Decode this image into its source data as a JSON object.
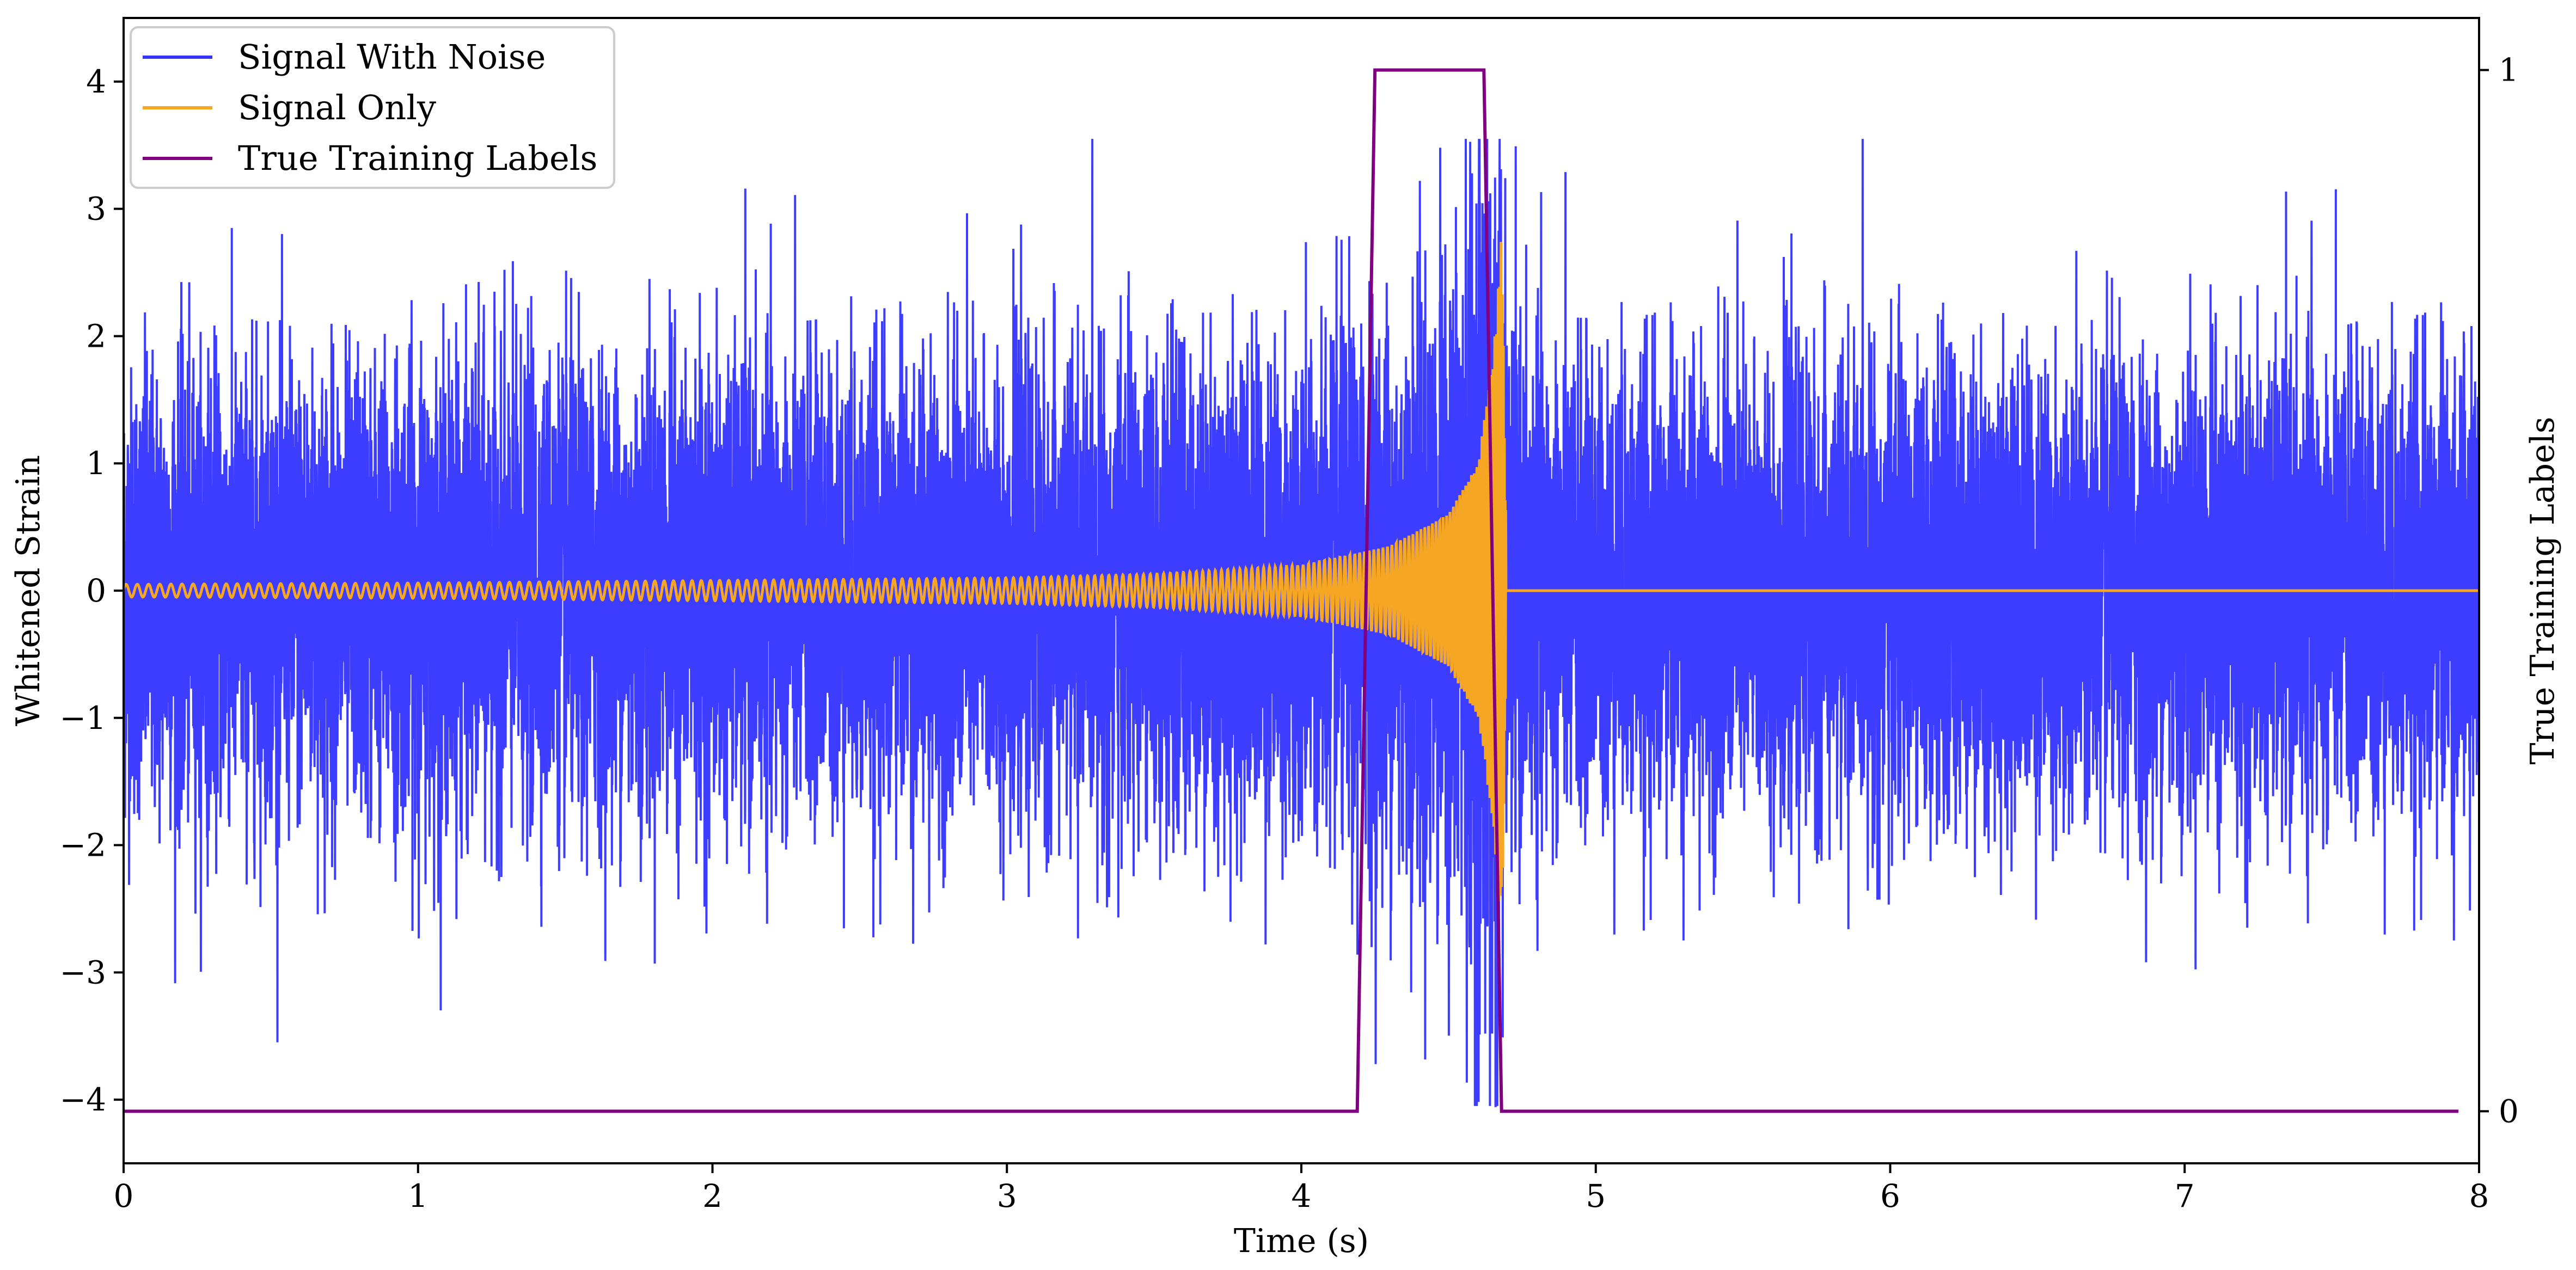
{
  "chart_data": {
    "type": "line",
    "xlabel": "Time (s)",
    "ylabel": "Whitened Strain",
    "y2label": "True Training Labels",
    "xlim": [
      0,
      8
    ],
    "ylim": [
      -4.5,
      4.5
    ],
    "y2lim": [
      -0.05,
      1.05
    ],
    "x_ticks": [
      "0",
      "1",
      "2",
      "3",
      "4",
      "5",
      "6",
      "7",
      "8"
    ],
    "y_ticks": [
      "4",
      "3",
      "2",
      "1",
      "0",
      "−1",
      "−2",
      "−3",
      "−4"
    ],
    "y2_ticks": [
      "1",
      "0"
    ],
    "grid": false,
    "legend_position": "top-left",
    "series": [
      {
        "name": "Signal With Noise",
        "color": "#3333ff",
        "axis": "left",
        "description_points": {
          "x": [
            0.0,
            1.0,
            2.0,
            3.0,
            4.0,
            4.5,
            4.66,
            4.7,
            5.0,
            6.0,
            7.0,
            8.0
          ],
          "amplitude_envelope": [
            1.6,
            1.6,
            1.6,
            1.6,
            1.7,
            2.2,
            3.5,
            1.8,
            1.6,
            1.6,
            1.6,
            1.6
          ]
        }
      },
      {
        "name": "Signal Only",
        "color": "#f5a623",
        "axis": "left",
        "chirp": {
          "x": [
            0.0,
            1.0,
            2.0,
            3.0,
            3.5,
            4.0,
            4.3,
            4.5,
            4.6,
            4.65,
            4.68,
            4.7,
            8.0
          ],
          "amplitude": [
            0.05,
            0.06,
            0.08,
            0.1,
            0.13,
            0.2,
            0.35,
            0.6,
            1.0,
            1.8,
            2.8,
            0.0,
            0.0
          ]
        }
      },
      {
        "name": "True Training Labels",
        "color": "#800080",
        "axis": "right",
        "x": [
          0.0,
          4.19,
          4.25,
          4.62,
          4.68,
          7.93
        ],
        "y": [
          0,
          0,
          1,
          1,
          0,
          0
        ]
      }
    ]
  }
}
